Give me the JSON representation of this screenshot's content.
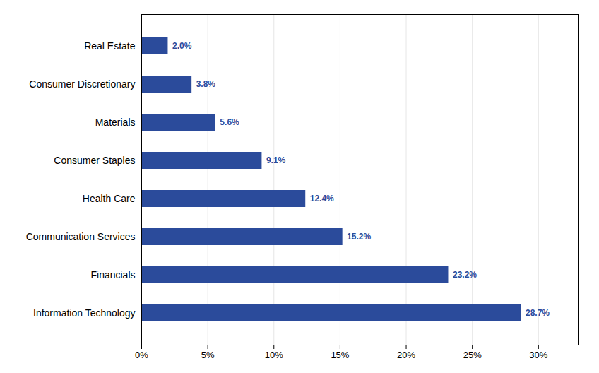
{
  "chart_data": {
    "type": "bar",
    "orientation": "horizontal",
    "categories": [
      "Information Technology",
      "Financials",
      "Communication Services",
      "Health Care",
      "Consumer Staples",
      "Materials",
      "Consumer Discretionary",
      "Real Estate"
    ],
    "values": [
      28.7,
      23.2,
      15.2,
      12.4,
      9.1,
      5.6,
      3.8,
      2.0
    ],
    "value_labels": [
      "28.7%",
      "23.2%",
      "15.2%",
      "12.4%",
      "9.1%",
      "5.6%",
      "3.8%",
      "2.0%"
    ],
    "data_labels": true,
    "color": "#2B4B9B",
    "xlim": [
      0,
      33
    ],
    "xticks": [
      {
        "value": 0,
        "label": "0%"
      },
      {
        "value": 5,
        "label": "5%"
      },
      {
        "value": 10,
        "label": "10%"
      },
      {
        "value": 15,
        "label": "15%"
      },
      {
        "value": 20,
        "label": "20%"
      },
      {
        "value": 25,
        "label": "25%"
      },
      {
        "value": 30,
        "label": "30%"
      }
    ],
    "grid": true
  }
}
